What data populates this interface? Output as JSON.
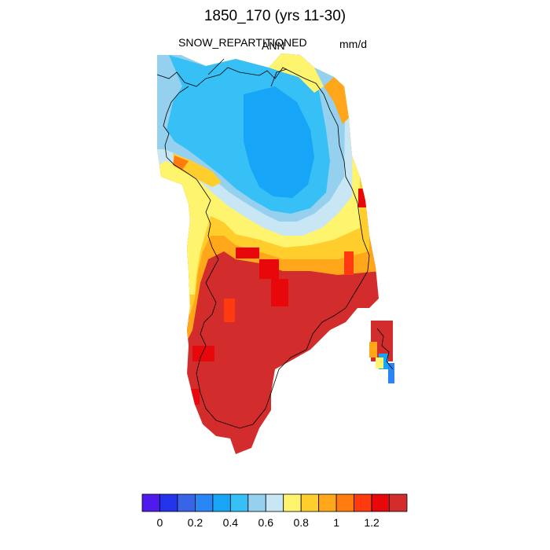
{
  "title": "1850_170 (yrs 11-30)",
  "variable": "SNOW_REPARTITIONED",
  "season": "ANN",
  "units": "mm/d",
  "colorbar": {
    "colors": [
      "#4f1aed",
      "#2633ed",
      "#3a64e8",
      "#2a86f5",
      "#17a6f7",
      "#36c0f5",
      "#95d1ee",
      "#c8e6f3",
      "#fff46e",
      "#ffce2c",
      "#ffa61b",
      "#ff7b0d",
      "#ff3a11",
      "#e8070b",
      "#d32c2c"
    ],
    "tick_labels": [
      "0",
      "0.2",
      "0.4",
      "0.6",
      "0.8",
      "1",
      "1.2"
    ]
  }
}
